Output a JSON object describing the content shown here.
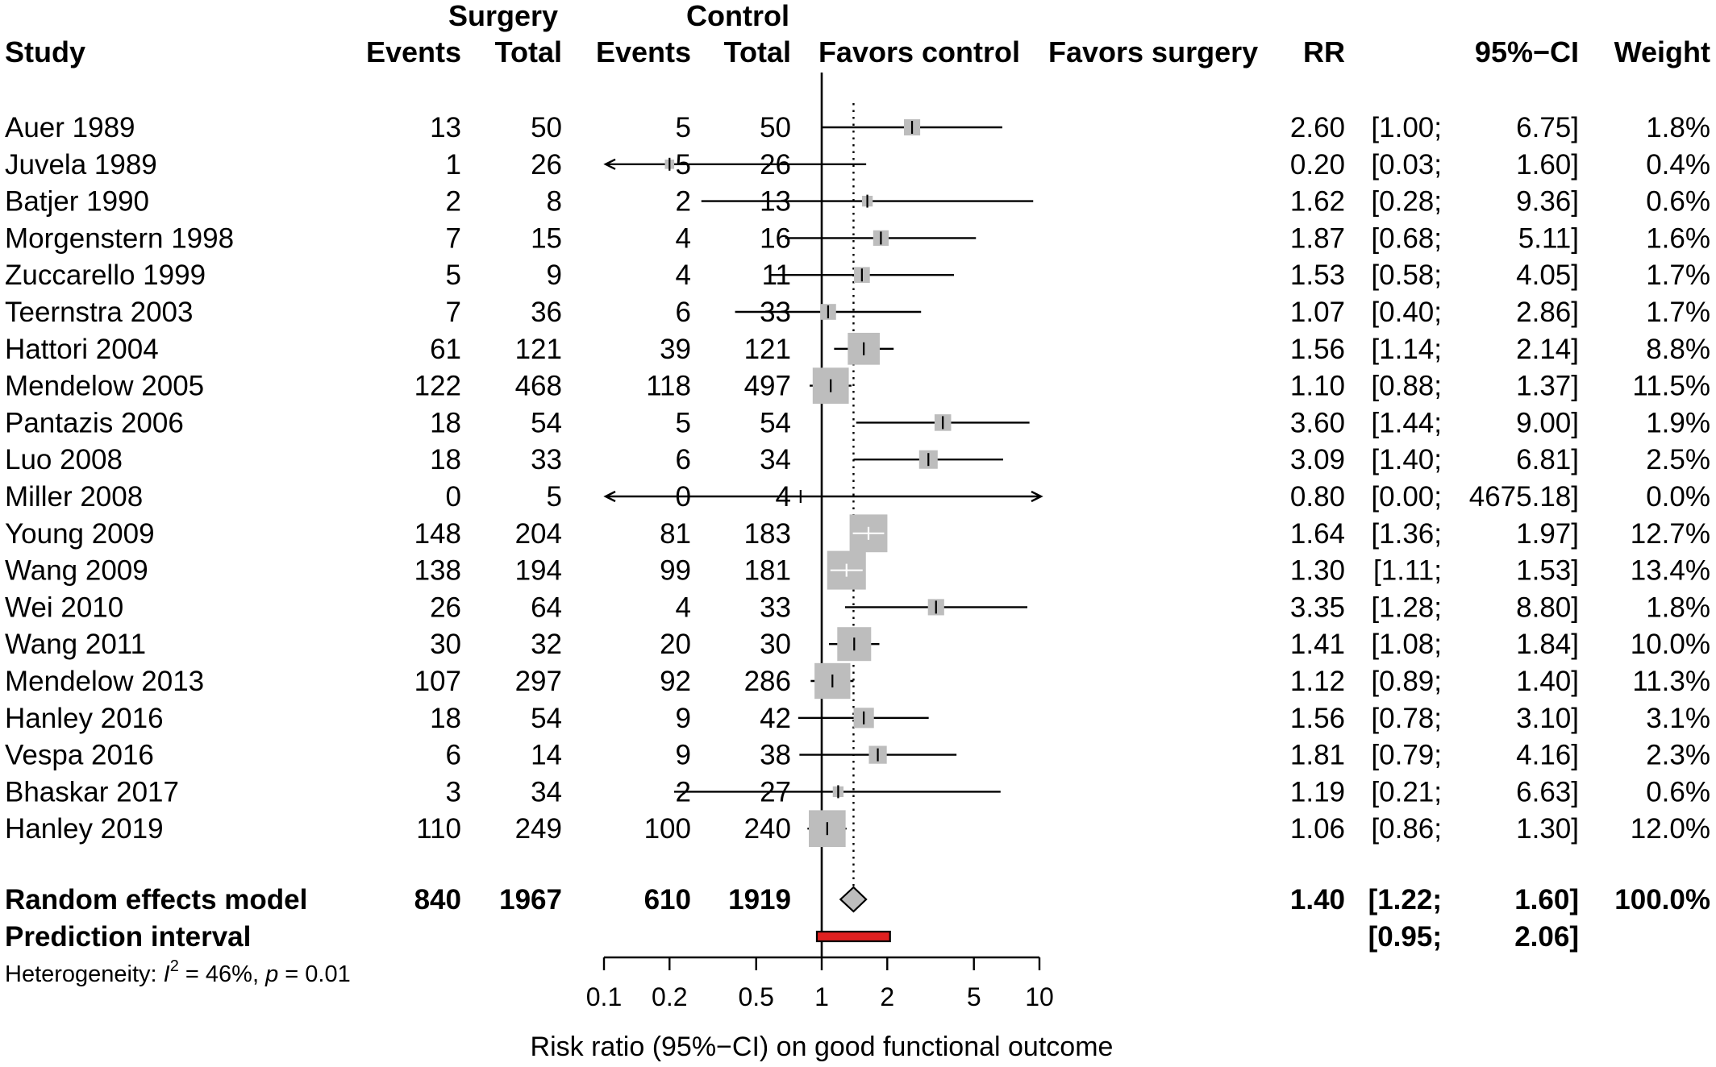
{
  "chart_data": {
    "type": "forest",
    "title": "",
    "headers": {
      "surgery_group": "Surgery",
      "control_group": "Control",
      "study": "Study",
      "surgery_events": "Events",
      "surgery_total": "Total",
      "control_events": "Events",
      "control_total": "Total",
      "favors_left": "Favors control",
      "favors_right": "Favors surgery",
      "rr": "RR",
      "ci": "95%−CI",
      "weight": "Weight"
    },
    "studies": [
      {
        "study": "Auer 1989",
        "se": "13",
        "st": "50",
        "ce": "5",
        "ct": "50",
        "rr": 2.6,
        "lo": 1.0,
        "hi": 6.75,
        "rr_text": "2.60",
        "lo_text": "[1.00;",
        "hi_text": "6.75]",
        "weight_pct": 1.8,
        "weight": "1.8%"
      },
      {
        "study": "Juvela 1989",
        "se": "1",
        "st": "26",
        "ce": "5",
        "ct": "26",
        "rr": 0.2,
        "lo": 0.03,
        "hi": 1.6,
        "rr_text": "0.20",
        "lo_text": "[0.03;",
        "hi_text": "1.60]",
        "weight_pct": 0.4,
        "weight": "0.4%"
      },
      {
        "study": "Batjer 1990",
        "se": "2",
        "st": "8",
        "ce": "2",
        "ct": "13",
        "rr": 1.62,
        "lo": 0.28,
        "hi": 9.36,
        "rr_text": "1.62",
        "lo_text": "[0.28;",
        "hi_text": "9.36]",
        "weight_pct": 0.6,
        "weight": "0.6%"
      },
      {
        "study": "Morgenstern 1998",
        "se": "7",
        "st": "15",
        "ce": "4",
        "ct": "16",
        "rr": 1.87,
        "lo": 0.68,
        "hi": 5.11,
        "rr_text": "1.87",
        "lo_text": "[0.68;",
        "hi_text": "5.11]",
        "weight_pct": 1.6,
        "weight": "1.6%"
      },
      {
        "study": "Zuccarello 1999",
        "se": "5",
        "st": "9",
        "ce": "4",
        "ct": "11",
        "rr": 1.53,
        "lo": 0.58,
        "hi": 4.05,
        "rr_text": "1.53",
        "lo_text": "[0.58;",
        "hi_text": "4.05]",
        "weight_pct": 1.7,
        "weight": "1.7%"
      },
      {
        "study": "Teernstra 2003",
        "se": "7",
        "st": "36",
        "ce": "6",
        "ct": "33",
        "rr": 1.07,
        "lo": 0.4,
        "hi": 2.86,
        "rr_text": "1.07",
        "lo_text": "[0.40;",
        "hi_text": "2.86]",
        "weight_pct": 1.7,
        "weight": "1.7%"
      },
      {
        "study": "Hattori 2004",
        "se": "61",
        "st": "121",
        "ce": "39",
        "ct": "121",
        "rr": 1.56,
        "lo": 1.14,
        "hi": 2.14,
        "rr_text": "1.56",
        "lo_text": "[1.14;",
        "hi_text": "2.14]",
        "weight_pct": 8.8,
        "weight": "8.8%"
      },
      {
        "study": "Mendelow 2005",
        "se": "122",
        "st": "468",
        "ce": "118",
        "ct": "497",
        "rr": 1.1,
        "lo": 0.88,
        "hi": 1.37,
        "rr_text": "1.10",
        "lo_text": "[0.88;",
        "hi_text": "1.37]",
        "weight_pct": 11.5,
        "weight": "11.5%"
      },
      {
        "study": "Pantazis 2006",
        "se": "18",
        "st": "54",
        "ce": "5",
        "ct": "54",
        "rr": 3.6,
        "lo": 1.44,
        "hi": 9.0,
        "rr_text": "3.60",
        "lo_text": "[1.44;",
        "hi_text": "9.00]",
        "weight_pct": 1.9,
        "weight": "1.9%"
      },
      {
        "study": "Luo 2008",
        "se": "18",
        "st": "33",
        "ce": "6",
        "ct": "34",
        "rr": 3.09,
        "lo": 1.4,
        "hi": 6.81,
        "rr_text": "3.09",
        "lo_text": "[1.40;",
        "hi_text": "6.81]",
        "weight_pct": 2.5,
        "weight": "2.5%"
      },
      {
        "study": "Miller 2008",
        "se": "0",
        "st": "5",
        "ce": "0",
        "ct": "4",
        "rr": 0.8,
        "lo": 0.0,
        "hi": 4675.18,
        "rr_text": "0.80",
        "lo_text": "[0.00;",
        "hi_text": "4675.18]",
        "weight_pct": 0.0,
        "weight": "0.0%"
      },
      {
        "study": "Young 2009",
        "se": "148",
        "st": "204",
        "ce": "81",
        "ct": "183",
        "rr": 1.64,
        "lo": 1.36,
        "hi": 1.97,
        "rr_text": "1.64",
        "lo_text": "[1.36;",
        "hi_text": "1.97]",
        "weight_pct": 12.7,
        "weight": "12.7%"
      },
      {
        "study": "Wang 2009",
        "se": "138",
        "st": "194",
        "ce": "99",
        "ct": "181",
        "rr": 1.3,
        "lo": 1.11,
        "hi": 1.53,
        "rr_text": "1.30",
        "lo_text": "[1.11;",
        "hi_text": "1.53]",
        "weight_pct": 13.4,
        "weight": "13.4%"
      },
      {
        "study": "Wei 2010",
        "se": "26",
        "st": "64",
        "ce": "4",
        "ct": "33",
        "rr": 3.35,
        "lo": 1.28,
        "hi": 8.8,
        "rr_text": "3.35",
        "lo_text": "[1.28;",
        "hi_text": "8.80]",
        "weight_pct": 1.8,
        "weight": "1.8%"
      },
      {
        "study": "Wang 2011",
        "se": "30",
        "st": "32",
        "ce": "20",
        "ct": "30",
        "rr": 1.41,
        "lo": 1.08,
        "hi": 1.84,
        "rr_text": "1.41",
        "lo_text": "[1.08;",
        "hi_text": "1.84]",
        "weight_pct": 10.0,
        "weight": "10.0%"
      },
      {
        "study": "Mendelow 2013",
        "se": "107",
        "st": "297",
        "ce": "92",
        "ct": "286",
        "rr": 1.12,
        "lo": 0.89,
        "hi": 1.4,
        "rr_text": "1.12",
        "lo_text": "[0.89;",
        "hi_text": "1.40]",
        "weight_pct": 11.3,
        "weight": "11.3%"
      },
      {
        "study": "Hanley 2016",
        "se": "18",
        "st": "54",
        "ce": "9",
        "ct": "42",
        "rr": 1.56,
        "lo": 0.78,
        "hi": 3.1,
        "rr_text": "1.56",
        "lo_text": "[0.78;",
        "hi_text": "3.10]",
        "weight_pct": 3.1,
        "weight": "3.1%"
      },
      {
        "study": "Vespa 2016",
        "se": "6",
        "st": "14",
        "ce": "9",
        "ct": "38",
        "rr": 1.81,
        "lo": 0.79,
        "hi": 4.16,
        "rr_text": "1.81",
        "lo_text": "[0.79;",
        "hi_text": "4.16]",
        "weight_pct": 2.3,
        "weight": "2.3%"
      },
      {
        "study": "Bhaskar 2017",
        "se": "3",
        "st": "34",
        "ce": "2",
        "ct": "27",
        "rr": 1.19,
        "lo": 0.21,
        "hi": 6.63,
        "rr_text": "1.19",
        "lo_text": "[0.21;",
        "hi_text": "6.63]",
        "weight_pct": 0.6,
        "weight": "0.6%"
      },
      {
        "study": "Hanley 2019",
        "se": "110",
        "st": "249",
        "ce": "100",
        "ct": "240",
        "rr": 1.06,
        "lo": 0.86,
        "hi": 1.3,
        "rr_text": "1.06",
        "lo_text": "[0.86;",
        "hi_text": "1.30]",
        "weight_pct": 12.0,
        "weight": "12.0%"
      }
    ],
    "pooled": {
      "label": "Random effects model",
      "se": "840",
      "st": "1967",
      "ce": "610",
      "ct": "1919",
      "rr": 1.4,
      "lo": 1.22,
      "hi": 1.6,
      "rr_text": "1.40",
      "lo_text": "[1.22;",
      "hi_text": "1.60]",
      "weight": "100.0%"
    },
    "prediction": {
      "label": "Prediction interval",
      "lo": 0.95,
      "hi": 2.06,
      "lo_text": "[0.95;",
      "hi_text": "2.06]",
      "color": "#e02020"
    },
    "heterogeneity": {
      "prefix": "Heterogeneity: ",
      "i2_symbol": "I",
      "i2_sup": "2",
      "i2_value": " = 46%, ",
      "p_symbol": "p",
      "p_value": " = 0.01"
    },
    "x_axis": {
      "scale": "log",
      "range": [
        0.1,
        10
      ],
      "ticks": [
        0.1,
        0.2,
        0.5,
        1,
        2,
        5,
        10
      ],
      "tick_labels": [
        "0.1",
        "0.2",
        "0.5",
        "1",
        "2",
        "5",
        "10"
      ],
      "label": "Risk ratio (95%−CI) on good functional outcome"
    },
    "null_line": 1,
    "summary_line": 1.4,
    "colors": {
      "box": "#bdbdbd",
      "diamond": "#bdbdbd",
      "line": "#000000",
      "inner_tick_light": "#ffffff"
    }
  }
}
